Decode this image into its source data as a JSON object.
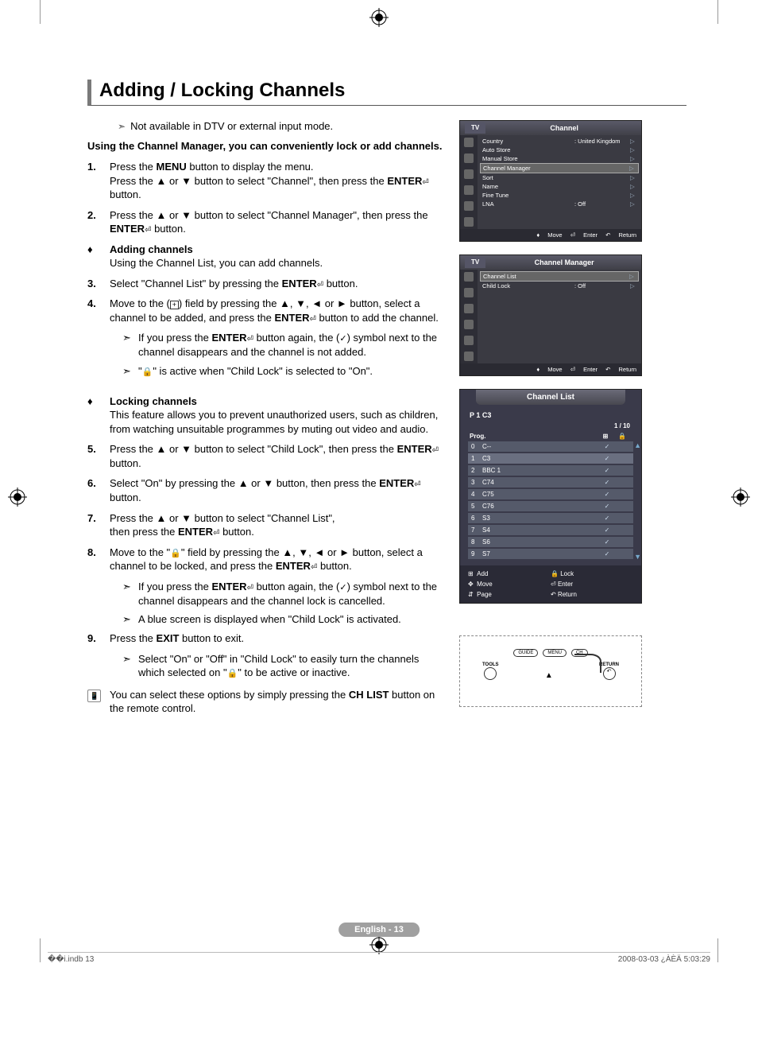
{
  "page": {
    "title": "Adding / Locking Channels",
    "intro_note": "Not available in DTV or external input mode.",
    "bold_intro": "Using the Channel Manager, you can conveniently lock or add channels.",
    "page_number": "English - 13",
    "footer_left": "��i.indb   13",
    "footer_right": "2008-03-03   ¿ÀÈÄ 5:03:29"
  },
  "steps": [
    {
      "n": "1.",
      "text": "Press the <b>MENU</b> button to display the menu.<br>Press the ▲ or ▼ button to select \"Channel\", then press the <b>ENTER</b><span class='enter-glyph'>⏎</span> button."
    },
    {
      "n": "2.",
      "text": "Press the ▲ or ▼ button to select \"Channel Manager\", then press the <b>ENTER</b><span class='enter-glyph'>⏎</span> button."
    }
  ],
  "adding": {
    "title": "Adding channels",
    "desc": "Using the Channel List, you can add channels.",
    "steps": [
      {
        "n": "3.",
        "text": "Select \"Channel List\" by pressing the <b>ENTER</b><span class='enter-glyph'>⏎</span> button."
      },
      {
        "n": "4.",
        "text": "Move to the (<span class='plus-box'>+</span>) field by pressing the ▲, ▼, ◄ or ► button, select a channel to be added, and press the <b>ENTER</b><span class='enter-glyph'>⏎</span> button to add the channel."
      }
    ],
    "subnotes": [
      "If you press the <b>ENTER</b><span class='enter-glyph'>⏎</span> button again, the (<span class='check-glyph'>✓</span>) symbol next to the channel disappears and the channel is not added.",
      "\"<span class='lock-glyph'>🔒</span>\" is active when \"Child Lock\" is selected to \"On\"."
    ]
  },
  "locking": {
    "title": "Locking channels",
    "desc": "This feature allows you to prevent unauthorized users, such as children, from watching unsuitable programmes by muting out video and audio.",
    "steps": [
      {
        "n": "5.",
        "text": "Press the ▲ or ▼ button to select \"Child Lock\", then press the <b>ENTER</b><span class='enter-glyph'>⏎</span> button."
      },
      {
        "n": "6.",
        "text": "Select \"On\" by pressing the ▲ or ▼ button, then press the <b>ENTER</b><span class='enter-glyph'>⏎</span> button."
      },
      {
        "n": "7.",
        "text": "Press the ▲ or ▼ button to select \"Channel List\",<br>then press the <b>ENTER</b><span class='enter-glyph'>⏎</span> button."
      },
      {
        "n": "8.",
        "text": "Move to the \"<span class='lock-glyph'>🔒</span>\" field by pressing the ▲, ▼, ◄ or ► button, select a channel to be locked, and press the <b>ENTER</b><span class='enter-glyph'>⏎</span> button."
      }
    ],
    "subnotes": [
      "If you press the <b>ENTER</b><span class='enter-glyph'>⏎</span> button again, the (<span class='check-glyph'>✓</span>) symbol next to the channel disappears and the channel lock is cancelled.",
      "A blue screen is displayed when \"Child Lock\" is activated."
    ],
    "step9": {
      "n": "9.",
      "text": "Press the <b>EXIT</b> button to exit."
    },
    "subnote9": "Select \"On\" or \"Off\" in \"Child Lock\" to easily turn the channels which selected on \"<span class='lock-glyph'>🔒</span>\" to be active or inactive."
  },
  "remote_note": "You can select these options by simply pressing the <b>CH LIST</b> button on the remote control.",
  "osd1": {
    "tab": "TV",
    "title": "Channel",
    "rows": [
      {
        "label": "Country",
        "val": ": United Kingdom"
      },
      {
        "label": "Auto Store",
        "val": ""
      },
      {
        "label": "Manual Store",
        "val": ""
      },
      {
        "label": "Channel Manager",
        "val": "",
        "selected": true
      },
      {
        "label": "Sort",
        "val": ""
      },
      {
        "label": "Name",
        "val": ""
      },
      {
        "label": "Fine Tune",
        "val": ""
      },
      {
        "label": "LNA",
        "val": ": Off"
      }
    ],
    "foot": {
      "move": "Move",
      "enter": "Enter",
      "return": "Return"
    }
  },
  "osd2": {
    "tab": "TV",
    "title": "Channel Manager",
    "rows": [
      {
        "label": "Channel List",
        "val": "",
        "selected": true
      },
      {
        "label": "Child Lock",
        "val": ": Off"
      }
    ],
    "foot": {
      "move": "Move",
      "enter": "Enter",
      "return": "Return"
    }
  },
  "channel_list": {
    "title": "Channel List",
    "sub": "P  1  C3",
    "count": "1 / 10",
    "col_prog": "Prog.",
    "rows": [
      {
        "n": "0",
        "ch": "C--",
        "chk": true
      },
      {
        "n": "1",
        "ch": "C3",
        "chk": true,
        "sel": true
      },
      {
        "n": "2",
        "ch": "BBC 1",
        "chk": true
      },
      {
        "n": "3",
        "ch": "C74",
        "chk": true
      },
      {
        "n": "4",
        "ch": "C75",
        "chk": true
      },
      {
        "n": "5",
        "ch": "C76",
        "chk": true
      },
      {
        "n": "6",
        "ch": "S3",
        "chk": true
      },
      {
        "n": "7",
        "ch": "S4",
        "chk": true
      },
      {
        "n": "8",
        "ch": "S6",
        "chk": true
      },
      {
        "n": "9",
        "ch": "S7",
        "chk": true
      }
    ],
    "foot": {
      "add": "Add",
      "lock": "Lock",
      "move": "Move",
      "enter": "Enter",
      "page": "Page",
      "return": "Return"
    }
  },
  "remote_diagram": {
    "guide": "GUIDE",
    "menu": "MENU",
    "ch": "CH",
    "tools": "TOOLS",
    "return": "RETURN"
  }
}
